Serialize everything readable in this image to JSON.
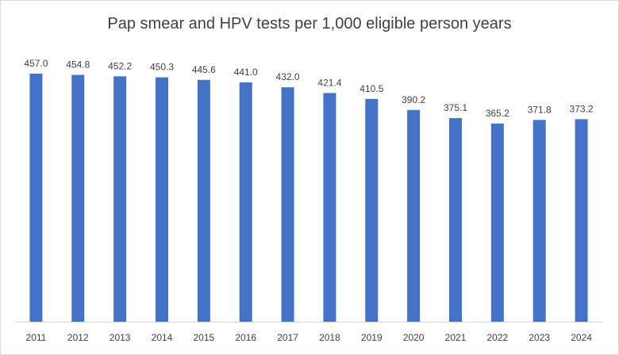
{
  "chart_data": {
    "type": "bar",
    "title": "Pap smear and HPV tests per 1,000 eligible person years",
    "categories": [
      "2011",
      "2012",
      "2013",
      "2014",
      "2015",
      "2016",
      "2017",
      "2018",
      "2019",
      "2020",
      "2021",
      "2022",
      "2023",
      "2024"
    ],
    "values": [
      457.0,
      454.8,
      452.2,
      450.3,
      445.6,
      441.0,
      432.0,
      421.4,
      410.5,
      390.2,
      375.1,
      365.2,
      371.8,
      373.2
    ],
    "value_labels": [
      "457.0",
      "454.8",
      "452.2",
      "450.3",
      "445.6",
      "441.0",
      "432.0",
      "421.4",
      "410.5",
      "390.2",
      "375.1",
      "365.2",
      "371.8",
      "373.2"
    ],
    "bar_color": "#4472C4",
    "ylim": [
      0,
      457.0
    ],
    "grid": false,
    "legend": "none",
    "data_labels": true,
    "xlabel": "",
    "ylabel": ""
  }
}
